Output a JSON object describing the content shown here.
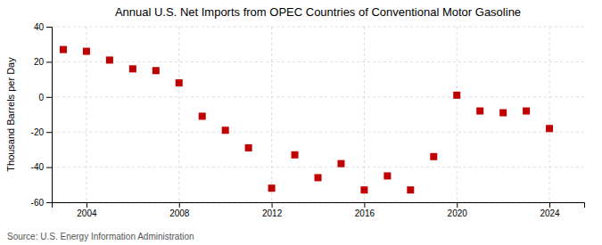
{
  "chart_data": {
    "type": "scatter",
    "title": "Annual U.S. Net Imports from OPEC Countries of Conventional Motor Gasoline",
    "ylabel": "Thousand Barrels per Day",
    "source": "Source: U.S. Energy Information Administration",
    "x": [
      2003,
      2004,
      2005,
      2006,
      2007,
      2008,
      2009,
      2010,
      2011,
      2012,
      2013,
      2014,
      2015,
      2016,
      2017,
      2018,
      2019,
      2020,
      2021,
      2022,
      2023,
      2024
    ],
    "values": [
      27,
      26,
      21,
      16,
      15,
      8,
      -11,
      -19,
      -29,
      -52,
      -33,
      -46,
      -38,
      -53,
      -45,
      -53,
      -34,
      1,
      -8,
      -9,
      -8,
      -18
    ],
    "xlim": [
      2002.5,
      2025.5
    ],
    "xticks": [
      2004,
      2008,
      2012,
      2016,
      2020,
      2024
    ],
    "ylim": [
      -60,
      40
    ],
    "yticks": [
      -60,
      -40,
      -20,
      0,
      20,
      40
    ],
    "color": "#c00000",
    "marker": "square",
    "grid": true
  }
}
